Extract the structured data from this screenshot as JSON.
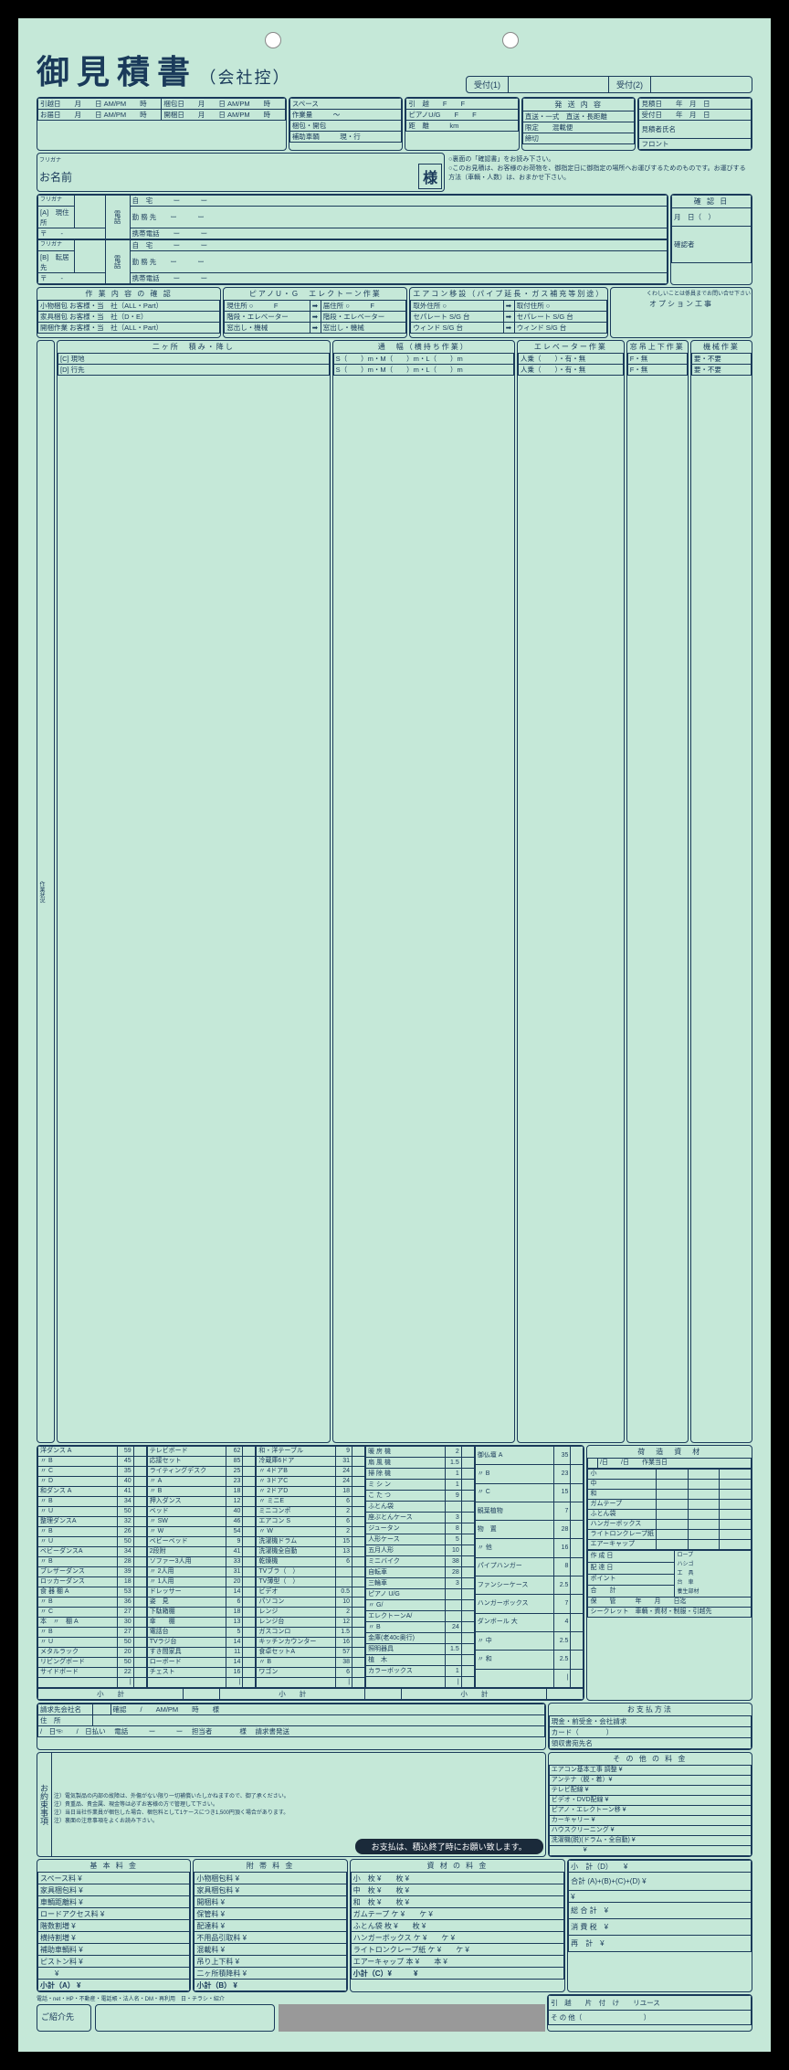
{
  "title": "御見積書",
  "subtitle": "（会社控）",
  "reception": {
    "label1": "受付(1)",
    "label2": "受付(2)"
  },
  "top_dates": {
    "moving_date": "引越日　　月　　日 AM/PM　　時",
    "packing_date": "梱包日　　月　　日 AM/PM　　時",
    "call_date": "お届日　　月　　日 AM/PM　　時",
    "unpack_date": "開梱日　　月　　日 AM/PM　　時"
  },
  "space_section": {
    "space": "スペース",
    "workload": "作業量　　　〜",
    "unpack": "梱包・開包",
    "helper": "補助車輌　　　現・行"
  },
  "transport": {
    "moving": "引　越　　F　　F",
    "piano": "ピアノU/G　　F　　F",
    "distance": "距　離　　　km",
    "ship_content": "発 送 内 容",
    "direct": "直送・一式　直送・長距離",
    "limit": "限定　　混載便",
    "deadline": "締切"
  },
  "quote_info": {
    "quote_date": "見積日　　年　月　日",
    "receive_date": "受付日　　年　月　日",
    "staff": "見積者氏名",
    "front": "フロント"
  },
  "name_section": {
    "furigana": "フリガナ",
    "name_label": "お名前",
    "sama": "様"
  },
  "notes": [
    "○裏面の「確認書」をお読み下さい。",
    "○このお見積は、お客様のお荷物を、御指定日に御指定の場所へお運びするためのものです。お運びする方法（車輌・人数）は、おまかせ下さい。"
  ],
  "address": {
    "furigana": "フリガナ",
    "current_label": "[A]　現住所",
    "post": "〒　　-",
    "new_label": "[B]　転居先"
  },
  "phone_section": {
    "label": "電話",
    "home": "自　宅　　　ー　　　ー",
    "work": "勤 務 先　　ー　　　ー",
    "mobile": "携帯電話　　ー　　　ー"
  },
  "confirm": {
    "label": "確 認 日",
    "date": "月　日（　）",
    "confirmer": "確認者"
  },
  "work_confirm": {
    "header": "作 業 内 容 の 確 認",
    "small_pack": "小物梱包 お客様・当　社（ALL・Part）",
    "furniture": "家具梱包 お客様・当　社（D・E）",
    "unpack": "開梱作業 お客様・当　社（ALL・Part）"
  },
  "piano_work": {
    "header": "ピアノU・G　エレクトーン作業",
    "current": "現住所 ○　　　F",
    "stairs": "階段・エレベーター",
    "window": "窓出し・機械",
    "dest": "届住所 ○　　　F",
    "arrow": "➡"
  },
  "aircon": {
    "header": "エアコン移設（パイプ延長・ガス補充等別途）",
    "remove": "取外住所 ○",
    "install": "取付住所 ○",
    "separate": "セパレート S/G 台",
    "window": "ウィンド S/G 台"
  },
  "option": {
    "header": "オプション工事",
    "note": "くわしいことは係員までお問い合せ下さい"
  },
  "two_location": {
    "header": "二ヶ所　積み・降し",
    "status": "作業状況",
    "c_local": "[C] 現地",
    "d_dest": "[D] 行先"
  },
  "passage": {
    "header": "通　幅（横持ち作業）",
    "s": "S（　　）m・M（　　）m・L（　　）m"
  },
  "elevator": {
    "header": "エレベーター作業",
    "people": "人乗（　　）・有・無"
  },
  "crane": {
    "header": "窓吊上下作業",
    "f": "F・無"
  },
  "machine": {
    "header": "機械作業",
    "yn": "要・不要"
  },
  "items_col1": [
    [
      "洋ダンス A",
      "59"
    ],
    [
      "〃 B",
      "45"
    ],
    [
      "〃 C",
      "35"
    ],
    [
      "〃 D",
      "40"
    ],
    [
      "和ダンス A",
      "41"
    ],
    [
      "〃 B",
      "34"
    ],
    [
      "〃 U",
      "50"
    ],
    [
      "整理ダンスA",
      "32"
    ],
    [
      "〃 B",
      "26"
    ],
    [
      "〃 U",
      "50"
    ],
    [
      "ベビーダンスA",
      "34"
    ],
    [
      "〃 B",
      "28"
    ],
    [
      "ブレザーダンス",
      "39"
    ],
    [
      "ロッカーダンス",
      "18"
    ],
    [
      "食 器 棚 A",
      "53"
    ],
    [
      "〃 B",
      "36"
    ],
    [
      "〃 C",
      "27"
    ],
    [
      "本　〃　棚 A",
      "30"
    ],
    [
      "〃 B",
      "27"
    ],
    [
      "〃 U",
      "50"
    ],
    [
      "メタルラック",
      "20"
    ],
    [
      "リビングボード",
      "50"
    ],
    [
      "サイドボード",
      "22"
    ],
    [
      "",
      "|"
    ]
  ],
  "items_col2": [
    [
      "テレビボード",
      "62"
    ],
    [
      "応接セット",
      "85"
    ],
    [
      "ライティングデスク",
      "25"
    ],
    [
      "〃 A",
      "23"
    ],
    [
      "〃 B",
      "18"
    ],
    [
      "押入ダンス",
      "12"
    ],
    [
      "ベッド",
      "40"
    ],
    [
      "〃 SW",
      "46"
    ],
    [
      "〃 W",
      "54"
    ],
    [
      "ベビーベッド",
      "9"
    ],
    [
      "2段附",
      "41"
    ],
    [
      "ソファー3人用",
      "33"
    ],
    [
      "〃 2人用",
      "31"
    ],
    [
      "〃 1人用",
      "20"
    ],
    [
      "ドレッサー",
      "14"
    ],
    [
      "姿　見",
      "6"
    ],
    [
      "下駄箱棚",
      "18"
    ],
    [
      "傘　　棚",
      "13"
    ],
    [
      "電話台",
      "5"
    ],
    [
      "TVラジ台",
      "14"
    ],
    [
      "すき間家具",
      "11"
    ],
    [
      "ローボード",
      "14"
    ],
    [
      "チェスト",
      "16"
    ],
    [
      "",
      "|"
    ]
  ],
  "items_col3": [
    [
      "和・洋テーブル",
      "9"
    ],
    [
      "冷蔵庫6ドア",
      "31"
    ],
    [
      "〃 4ドアB",
      "24"
    ],
    [
      "〃 3ドアC",
      "24"
    ],
    [
      "〃 2ドアD",
      "18"
    ],
    [
      "〃 ミニE",
      "6"
    ],
    [
      "ミニコンポ",
      "2"
    ],
    [
      "エアコン S",
      "6"
    ],
    [
      "〃 W",
      "2"
    ],
    [
      "洗濯機ドラム",
      "15"
    ],
    [
      "洗濯機全自動",
      "13"
    ],
    [
      "乾燥機",
      "6"
    ],
    [
      "TVブラ（　）",
      ""
    ],
    [
      "TV薄型（　）",
      ""
    ],
    [
      "ビデオ",
      "0.5"
    ],
    [
      "パソコン",
      "10"
    ],
    [
      "レンジ",
      "2"
    ],
    [
      "レンジ台",
      "12"
    ],
    [
      "ガスコンロ",
      "1.5"
    ],
    [
      "キッチンカウンター",
      "16"
    ],
    [
      "食卓セットA",
      "57"
    ],
    [
      "〃 B",
      "38"
    ],
    [
      "ワゴン",
      "6"
    ],
    [
      "",
      "|"
    ]
  ],
  "items_col4": [
    [
      "暖 房 機",
      "2"
    ],
    [
      "扇 風 機",
      "1.5"
    ],
    [
      "掃 除 機",
      "1"
    ],
    [
      "ミ シ ン",
      "1"
    ],
    [
      "こ た つ",
      "9"
    ],
    [
      "ふとん袋",
      ""
    ],
    [
      "座ぶとんケース",
      "3"
    ],
    [
      "ジュータン",
      "8"
    ],
    [
      "人形ケース",
      "5"
    ],
    [
      "五月人形",
      "10"
    ],
    [
      "ミニバイク",
      "38"
    ],
    [
      "自転車",
      "28"
    ],
    [
      "三輪車",
      "3"
    ],
    [
      "ピアノ U/G",
      ""
    ],
    [
      "〃 G/",
      ""
    ],
    [
      "エレクトーンA/",
      ""
    ],
    [
      "〃 B",
      "24"
    ],
    [
      "金庫(老40c奥行)",
      ""
    ],
    [
      "照明器具",
      "1.5"
    ],
    [
      "植　木",
      ""
    ],
    [
      "カラーボックス",
      "1"
    ],
    [
      "",
      "|"
    ]
  ],
  "items_col5": [
    [
      "御仏壇 A",
      "35"
    ],
    [
      "〃 B",
      "23"
    ],
    [
      "〃 C",
      "15"
    ],
    [
      "観葉植物",
      "7"
    ],
    [
      "物　置",
      "28"
    ],
    [
      "〃 他",
      "16"
    ],
    [
      "パイプハンガー",
      "8"
    ],
    [
      "ファンシーケース",
      "2.5"
    ],
    [
      "ハンガーボックス",
      "7"
    ],
    [
      "ダンボール 大",
      "4"
    ],
    [
      "〃 中",
      "2.5"
    ],
    [
      "〃 和",
      "2.5"
    ],
    [
      "",
      "|"
    ]
  ],
  "subtotal": "小　　計",
  "materials": {
    "header": "荷　造　資　材",
    "date_cols": "/日　　/日　　作業当日",
    "items": [
      "小",
      "中",
      "和",
      "ガムテープ",
      "ふとん袋",
      "ハンガーボックス",
      "ライトロンクレープ紙",
      "エアーキャップ"
    ],
    "creation": "作 成 日",
    "delivery": "配 達 日",
    "point": "ポイント",
    "total": "合　　計",
    "storage": "保　　管　　　年　　月　　日迄",
    "secret": "シークレット　車輌・資材・制服・引越先",
    "extras": [
      "ロープ",
      "ハシゴ",
      "工　具",
      "台　車",
      "養生部材"
    ]
  },
  "billing": {
    "company": "請求先会社名",
    "address": "住　所",
    "confirm": "確認　　/　　AM/PM　　時　　様",
    "date_pay": "/　日☜　　/　日払い",
    "phone": "電話　　　ー　　　ー",
    "pic": "担当者　　　　様",
    "fax": "請求書発送"
  },
  "payment": {
    "header": "お支払方法",
    "cash": "現金・前受金・会社請求",
    "card": "カード（　　　　）",
    "receipt": "領収書宛先名"
  },
  "promise": {
    "label": "お約束事項",
    "notes": [
      "注）電気製品の内部の故障は、外傷がない限り一切補償いたしかねますので、御了承ください。",
      "注）貴重品、貴金属、現金等は必ずお客様の方で管理して下さい。",
      "注）当日当社作業員が梱包した場合、梱包料として1ケースにつき1,500円頂く場合があります。",
      "注）裏面の注意事項をよくお読み下さい。"
    ],
    "dark": "お支払は、積込終了時にお願い致します。"
  },
  "other_fees": {
    "header": "そ の 他 の 料 金",
    "items": [
      "エアコン基本工事 調整 ¥",
      "アンテナ（脱・着）¥",
      "テレビ配線 ¥",
      "ビデオ・DVD配線 ¥",
      "ピアノ・エレクトーン移 ¥",
      "カーキャリー ¥",
      "ハウスクリーニング ¥",
      "洗濯機(脱)(ドラム・全自動) ¥",
      "　　　　　¥"
    ],
    "subtotal": "小　計（D）　　¥",
    "grand": "合計 (A)+(B)+(C)+(D) ¥",
    "grand2": "¥",
    "total_label": "総 合 計　¥",
    "tax": "消 費 税　¥",
    "retotal": "再　計　¥"
  },
  "basic_fees": {
    "header": "基 本 料 金",
    "items": [
      "スペース料 ¥",
      "家具梱包料 ¥",
      "車輌距離料 ¥",
      "ロードアクセス料 ¥",
      "階数割増 ¥",
      "横持割増 ¥",
      "補助車輌料 ¥",
      "ピストン料 ¥",
      "　　¥"
    ],
    "subtotal": "小計（A） ¥"
  },
  "attached_fees": {
    "header": "附 帯 料 金",
    "items": [
      "小物梱包料 ¥",
      "家具梱包料 ¥",
      "開梱料 ¥",
      "保管料 ¥",
      "配達料 ¥",
      "不用品引取料 ¥",
      "混載料 ¥",
      "吊り上下料 ¥",
      "二ヶ所積降料 ¥"
    ],
    "subtotal": "小計（B） ¥"
  },
  "material_fees": {
    "header": "資 材 の 料 金",
    "items": [
      "小　枚 ¥　　枚 ¥",
      "中　枚 ¥　　枚 ¥",
      "和　枚 ¥　　枚 ¥",
      "ガムテープ ケ ¥　　ケ ¥",
      "ふとん袋 枚 ¥　　枚 ¥",
      "ハンガーボックス ケ ¥　　ケ ¥",
      "ライトロンクレープ紙 ケ ¥　　ケ ¥",
      "エアーキャップ 本 ¥　　本 ¥"
    ],
    "subtotal": "小計（C）¥　　　¥"
  },
  "footer": {
    "channels": "電話・net・HP・不動産・電話帳・法人名・DM・再利用　日・チラシ・紹介",
    "referral": "ご紹介先",
    "division": "引　越　　片　付　け　　リユース",
    "other": "そ の 他（　　　　　　　　　）"
  }
}
